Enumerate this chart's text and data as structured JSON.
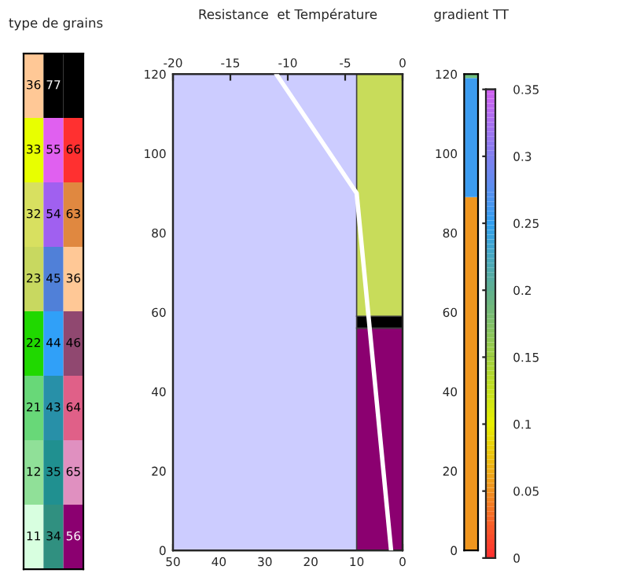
{
  "chart_data": [
    {
      "type": "heatmap",
      "title": "type de grains",
      "tick_labels": false,
      "categories": [
        null,
        null,
        null
      ],
      "y_categories": [
        null,
        null,
        null,
        null,
        null,
        null,
        null,
        null
      ],
      "cells": [
        [
          36,
          77,
          null
        ],
        [
          33,
          55,
          66
        ],
        [
          32,
          54,
          63
        ],
        [
          23,
          45,
          36
        ],
        [
          22,
          44,
          46
        ],
        [
          21,
          43,
          64
        ],
        [
          12,
          35,
          65
        ],
        [
          11,
          34,
          56
        ]
      ],
      "cell_labels": [
        [
          "36",
          "77",
          null
        ],
        [
          "33",
          "55",
          "66"
        ],
        [
          "32",
          "54",
          "63"
        ],
        [
          "23",
          "45",
          "36"
        ],
        [
          "22",
          "44",
          "46"
        ],
        [
          "21",
          "43",
          "64"
        ],
        [
          "12",
          "35",
          "65"
        ],
        [
          "11",
          "34",
          "56"
        ]
      ],
      "colors": [
        [
          "#ffc896",
          "#000000",
          "#000000"
        ],
        [
          "#e8ff00",
          "#e060f0",
          "#ff3030"
        ],
        [
          "#d8e060",
          "#a060f0",
          "#e08840"
        ],
        [
          "#c8d860",
          "#5080d8",
          "#ffc896"
        ],
        [
          "#20d800",
          "#30a0f8",
          "#904870"
        ],
        [
          "#68d878",
          "#2890a8",
          "#e06088"
        ],
        [
          "#90e098",
          "#209090",
          "#e090c0"
        ],
        [
          "#d8ffe0",
          "#309080",
          "#8b0070"
        ]
      ]
    },
    {
      "type": "bar",
      "title": "Resistance  et Température",
      "stacked": true,
      "bands": [
        {
          "axis": "x",
          "from": 50,
          "to": 0,
          "color": "#ccccff"
        }
      ],
      "series": [
        {
          "type": "bar",
          "x": [
            5
          ],
          "values": [
            56
          ],
          "color": "#8b0070"
        },
        {
          "type": "bar",
          "x": [
            5
          ],
          "values": [
            3
          ],
          "color": "#000000"
        },
        {
          "type": "bar",
          "x": [
            5
          ],
          "values": [
            61
          ],
          "color": "#c8dc5a"
        },
        {
          "type": "line",
          "axis": "x2",
          "x": [
            -1,
            -4,
            -11
          ],
          "values": [
            0,
            90,
            120
          ],
          "color": "#ffffff"
        }
      ],
      "xlim": [
        50,
        0
      ],
      "xticks": [
        50,
        40,
        30,
        20,
        10,
        0
      ],
      "x2lim": [
        -20,
        0
      ],
      "x2ticks": [
        -20,
        -15,
        -10,
        -5,
        0
      ],
      "ylim": [
        0,
        120
      ],
      "yticks": [
        0,
        20,
        40,
        60,
        80,
        100,
        120
      ]
    },
    {
      "type": "bar",
      "stacked": true,
      "title": "gradient TT",
      "categories": [
        null
      ],
      "tick_labels": "y",
      "series": [
        {
          "values": [
            89
          ],
          "color": "#f0961e"
        },
        {
          "values": [
            30
          ],
          "color": "#3c9cf0"
        },
        {
          "values": [
            1
          ],
          "color": "#70c080"
        }
      ],
      "ylim": [
        0,
        120
      ],
      "yticks": [
        0,
        20,
        40,
        60,
        80,
        100,
        120
      ],
      "clim": [
        0,
        0.35
      ],
      "cticks": [
        0,
        0.05,
        0.1,
        0.15,
        0.2,
        0.25,
        0.3,
        0.35
      ]
    }
  ]
}
